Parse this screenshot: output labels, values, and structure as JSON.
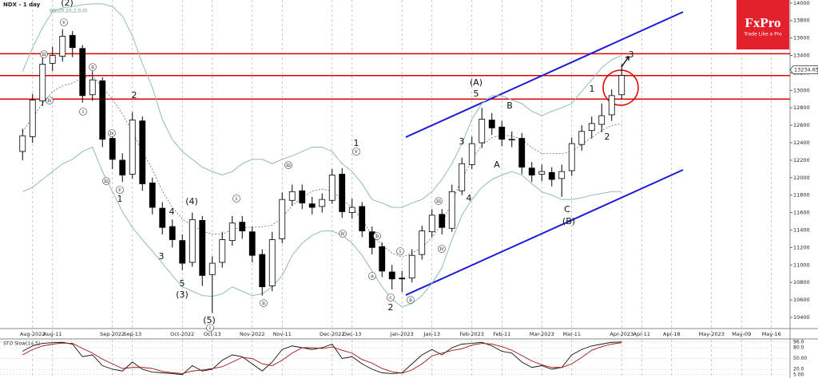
{
  "chart_data": {
    "type": "candlestick",
    "title": "NDX - 1 day",
    "indicator_label": "BB(20,20,2,0,0)",
    "categories": [
      null,
      "Aug-2022",
      null,
      "Aug-11",
      null,
      null,
      null,
      null,
      null,
      "Sep-2022",
      null,
      "Sep-13",
      null,
      null,
      null,
      null,
      "Oct-2022",
      null,
      null,
      "Oct-13",
      null,
      null,
      null,
      "Nov-2022",
      null,
      null,
      "Nov-11",
      null,
      null,
      null,
      null,
      "Dec-2022",
      null,
      "Dec-13",
      null,
      null,
      null,
      null,
      "Jan-2023",
      null,
      null,
      "Jan-13",
      null,
      null,
      null,
      "Feb-2023",
      null,
      null,
      "Feb-11",
      null,
      null,
      null,
      "Mar-2023",
      null,
      null,
      "Mar-11",
      null,
      null,
      null,
      null,
      "Apr-2023",
      null,
      "Apr-11",
      null,
      null,
      "Apr-18",
      null,
      null,
      null,
      "May-2023",
      null,
      null,
      "May-09",
      null,
      null,
      "May-16",
      null
    ],
    "open": [
      12300,
      12470,
      12880,
      13310,
      13390,
      13630,
      13480,
      12950,
      13110,
      12450,
      12200,
      12040,
      12650,
      11940,
      11650,
      11440,
      11280,
      11030,
      11510,
      10890,
      11030,
      11280,
      11490,
      11380,
      11120,
      10760,
      11300,
      11740,
      11850,
      11700,
      11670,
      11740,
      12040,
      11600,
      11670,
      11380,
      11210,
      10920,
      10850,
      10850,
      11120,
      11380,
      11580,
      11420,
      11850,
      12150,
      12400,
      12660,
      12580,
      12430,
      12450,
      12110,
      12040,
      12060,
      11990,
      12080,
      12380,
      12540,
      12610,
      12720,
      12950,
      null,
      null,
      null,
      null,
      null,
      null,
      null,
      null,
      null,
      null,
      null,
      null,
      null,
      null,
      null,
      null
    ],
    "high": [
      12560,
      12960,
      13380,
      13500,
      13700,
      13680,
      13520,
      13220,
      13150,
      12520,
      12280,
      12750,
      12700,
      12000,
      11720,
      11520,
      11350,
      11600,
      11560,
      11100,
      11380,
      11560,
      11560,
      11440,
      11180,
      11380,
      11830,
      11920,
      11920,
      11780,
      11820,
      12100,
      12110,
      11760,
      11720,
      11440,
      11260,
      11000,
      10930,
      11180,
      11450,
      11640,
      11640,
      11920,
      12230,
      12470,
      12800,
      12740,
      12650,
      12530,
      12510,
      12180,
      12150,
      12120,
      12150,
      12460,
      12600,
      12700,
      12850,
      13010,
      13300,
      null,
      null,
      null,
      null,
      null,
      null,
      null,
      null,
      null,
      null,
      null,
      null,
      null,
      null,
      null,
      null
    ],
    "low": [
      12200,
      12400,
      12820,
      13220,
      13330,
      13380,
      12860,
      12880,
      12350,
      12100,
      11950,
      11990,
      11850,
      11580,
      11350,
      11200,
      10940,
      10980,
      10760,
      10450,
      10970,
      11220,
      11300,
      11030,
      10650,
      10700,
      11250,
      11680,
      11640,
      11580,
      11600,
      11700,
      11540,
      11530,
      11320,
      11120,
      10860,
      10720,
      10690,
      10800,
      11060,
      11320,
      11350,
      11380,
      11800,
      12100,
      12340,
      12490,
      12360,
      12350,
      12040,
      11950,
      11960,
      11900,
      11780,
      12020,
      12310,
      12450,
      12520,
      12650,
      12900,
      null,
      null,
      null,
      null,
      null,
      null,
      null,
      null,
      null,
      null,
      null,
      null,
      null,
      null,
      null,
      null
    ],
    "close": [
      12480,
      12890,
      13300,
      13400,
      13620,
      13490,
      12940,
      13120,
      12440,
      12210,
      12030,
      12660,
      11930,
      11660,
      11430,
      11290,
      11020,
      11520,
      10880,
      11020,
      11290,
      11480,
      11390,
      11110,
      10750,
      11290,
      11750,
      11840,
      11710,
      11660,
      11750,
      12030,
      11610,
      11660,
      11390,
      11200,
      10930,
      10840,
      10840,
      11110,
      11390,
      11570,
      11430,
      11840,
      12160,
      12390,
      12670,
      12570,
      12440,
      12440,
      12120,
      12030,
      12070,
      11980,
      12070,
      12390,
      12530,
      12620,
      12710,
      12940,
      13170,
      null,
      null,
      null,
      null,
      null,
      null,
      null,
      null,
      null,
      null,
      null,
      null,
      null,
      null,
      null,
      null
    ],
    "up_color": "#ffffff",
    "down_color": "#000000",
    "bb_upper": [
      13214,
      13490,
      13720,
      13900,
      13945,
      13960,
      13980,
      13990,
      13990,
      13960,
      13850,
      13625,
      13305,
      13031,
      12666,
      12437,
      12300,
      12210,
      12120,
      12070,
      12030,
      12070,
      12160,
      12210,
      12210,
      12160,
      12210,
      12250,
      12300,
      12350,
      12350,
      12300,
      12160,
      12070,
      11930,
      11750,
      11710,
      11660,
      11660,
      11710,
      11750,
      11840,
      11980,
      12160,
      12390,
      12670,
      12850,
      12940,
      12940,
      12890,
      12850,
      12760,
      12710,
      12760,
      12800,
      12850,
      12990,
      13120,
      13260,
      13350,
      13400,
      null,
      null,
      null,
      null,
      null,
      null,
      null,
      null,
      null,
      null,
      null,
      null,
      null,
      null,
      null,
      null
    ],
    "bb_middle": [
      12527,
      12690,
      12850,
      12985,
      13050,
      13085,
      13140,
      13170,
      13030,
      12900,
      12730,
      12530,
      12300,
      12095,
      11845,
      11660,
      11525,
      11455,
      11385,
      11355,
      11350,
      11410,
      11430,
      11430,
      11440,
      11455,
      11545,
      11680,
      11775,
      11845,
      11870,
      11845,
      11750,
      11660,
      11520,
      11340,
      11230,
      11135,
      11090,
      11135,
      11200,
      11315,
      11475,
      11725,
      11980,
      12210,
      12370,
      12460,
      12485,
      12480,
      12440,
      12345,
      12275,
      12280,
      12275,
      12300,
      12380,
      12460,
      12540,
      12595,
      12620,
      null,
      null,
      null,
      null,
      null,
      null,
      null,
      null,
      null,
      null,
      null,
      null,
      null,
      null,
      null,
      null
    ],
    "bb_lower": [
      11840,
      11890,
      11980,
      12070,
      12160,
      12210,
      12300,
      12350,
      12070,
      11840,
      11610,
      11430,
      11290,
      11160,
      11020,
      10880,
      10750,
      10700,
      10650,
      10640,
      10670,
      10750,
      10700,
      10650,
      10670,
      10750,
      10880,
      11110,
      11250,
      11340,
      11390,
      11390,
      11340,
      11250,
      11110,
      10930,
      10750,
      10610,
      10520,
      10560,
      10650,
      10790,
      10970,
      11290,
      11570,
      11750,
      11890,
      11980,
      12030,
      12070,
      12030,
      11930,
      11840,
      11800,
      11750,
      11750,
      11770,
      11800,
      11820,
      11840,
      11840,
      null,
      null,
      null,
      null,
      null,
      null,
      null,
      null,
      null,
      null,
      null,
      null,
      null,
      null,
      null,
      null
    ],
    "bb_color": "#8fbcb8",
    "ylim": [
      10290,
      14035
    ],
    "yticks": [
      10400,
      10600,
      10800,
      11000,
      11200,
      11400,
      11600,
      11800,
      12000,
      12200,
      12400,
      12600,
      12800,
      13000,
      13200,
      13400,
      13600,
      13800,
      14000
    ],
    "last_price": 13234.65,
    "levels": {
      "values": [
        13420,
        13170,
        12900
      ],
      "color": "#e00000"
    },
    "annotations": [
      "(2)",
      "2",
      "4",
      "(4)",
      "3",
      "5",
      "(3)",
      "(5)",
      "1",
      "1",
      "2",
      "(A)",
      "5",
      "3",
      "4",
      "A",
      "B",
      "C",
      "(B)",
      "1",
      "2",
      "3",
      "iii",
      "iv",
      "v",
      "ii",
      "i",
      "iv",
      "iii",
      "v",
      "i",
      "iii",
      "iv",
      "v",
      "ii",
      "b",
      "a",
      "c",
      "ii",
      "i",
      "iii",
      "iv",
      "i"
    ],
    "logo": {
      "name": "FxPro",
      "tagline": "Trade Like a Pro"
    },
    "oscillator": {
      "label": "STO Slow(14,5)",
      "ylim": [
        0,
        100
      ],
      "yticks": [
        {
          "value": 96,
          "label": "96.0"
        },
        {
          "value": 80,
          "label": "80.0"
        },
        {
          "value": 50,
          "label": "50.00"
        },
        {
          "value": 20,
          "label": "20.0"
        },
        {
          "value": 5,
          "label": "5.00"
        }
      ],
      "k": [
        70,
        85,
        92,
        94,
        95,
        90,
        55,
        60,
        30,
        20,
        15,
        40,
        20,
        12,
        10,
        8,
        5,
        30,
        15,
        20,
        45,
        60,
        55,
        35,
        15,
        40,
        75,
        85,
        80,
        75,
        80,
        90,
        50,
        55,
        35,
        20,
        10,
        8,
        10,
        35,
        60,
        75,
        60,
        80,
        90,
        92,
        95,
        85,
        70,
        65,
        40,
        25,
        30,
        20,
        25,
        60,
        75,
        85,
        90,
        95,
        96,
        null,
        null,
        null,
        null,
        null,
        null,
        null,
        null,
        null,
        null,
        null,
        null,
        null,
        null,
        null,
        null
      ],
      "d": [
        60,
        75,
        85,
        90,
        93,
        92,
        78,
        65,
        48,
        35,
        22,
        25,
        25,
        22,
        14,
        10,
        8,
        15,
        18,
        22,
        27,
        40,
        53,
        50,
        35,
        30,
        45,
        65,
        80,
        80,
        78,
        82,
        73,
        65,
        47,
        37,
        22,
        13,
        9,
        18,
        35,
        57,
        65,
        72,
        77,
        87,
        92,
        90,
        83,
        73,
        58,
        43,
        32,
        25,
        25,
        35,
        53,
        73,
        83,
        90,
        94,
        null,
        null,
        null,
        null,
        null,
        null,
        null,
        null,
        null,
        null,
        null,
        null,
        null,
        null,
        null,
        null
      ],
      "k_color": "#111111",
      "d_color": "#a01010"
    }
  }
}
